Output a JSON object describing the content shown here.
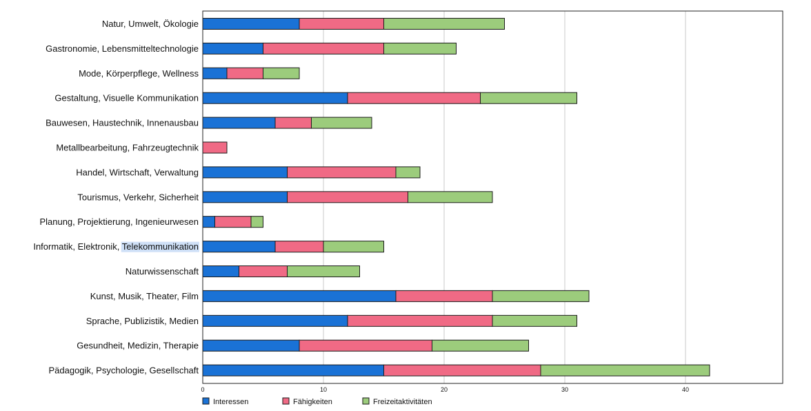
{
  "chart_data": {
    "type": "bar",
    "orientation": "horizontal",
    "stacked": true,
    "categories": [
      "Natur, Umwelt, Ökologie",
      "Gastronomie, Lebensmitteltechnologie",
      "Mode, Körperpflege, Wellness",
      "Gestaltung, Visuelle Kommunikation",
      "Bauwesen, Haustechnik, Innenausbau",
      "Metallbearbeitung, Fahrzeugtechnik",
      "Handel, Wirtschaft, Verwaltung",
      "Tourismus, Verkehr, Sicherheit",
      "Planung, Projektierung, Ingenieurwesen",
      "Informatik, Elektronik, Telekommunikation",
      "Naturwissenschaft",
      "Kunst, Musik, Theater, Film",
      "Sprache, Publizistik, Medien",
      "Gesundheit, Medizin, Therapie",
      "Pädagogik, Psychologie, Gesellschaft"
    ],
    "series": [
      {
        "name": "Interessen",
        "color": "#1a72d6",
        "values": [
          8,
          5,
          2,
          12,
          6,
          0,
          7,
          7,
          1,
          6,
          3,
          16,
          12,
          8,
          15
        ]
      },
      {
        "name": "Fähigkeiten",
        "color": "#f06a85",
        "values": [
          7,
          10,
          3,
          11,
          3,
          2,
          9,
          10,
          3,
          4,
          4,
          8,
          12,
          11,
          13
        ]
      },
      {
        "name": "Freizeitaktivitäten",
        "color": "#9ccc7c",
        "values": [
          10,
          6,
          3,
          8,
          5,
          0,
          2,
          7,
          1,
          5,
          6,
          8,
          7,
          8,
          14
        ]
      }
    ],
    "xlim": [
      0,
      48
    ],
    "x_ticks": [
      0,
      10,
      20,
      30,
      40
    ],
    "grid": "vertical",
    "legend": "bottom-left",
    "highlighted_text": "Telekommunikation"
  }
}
